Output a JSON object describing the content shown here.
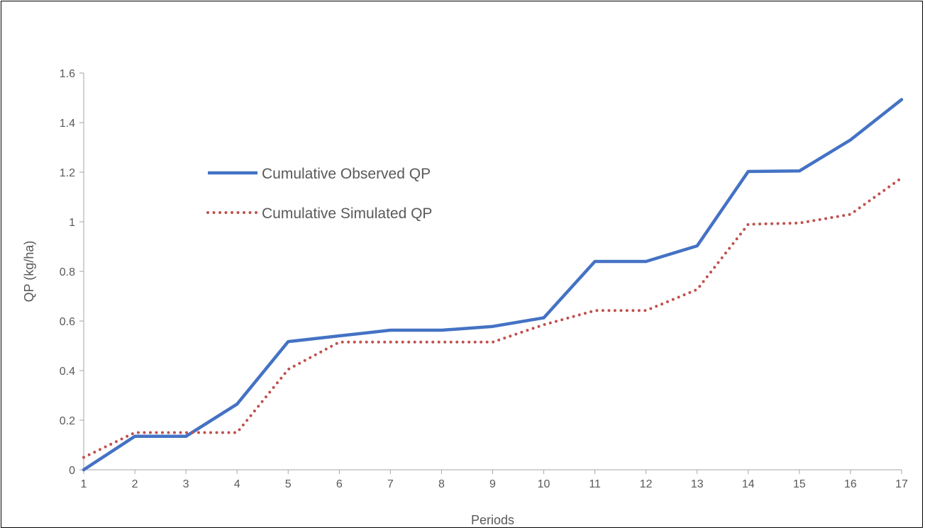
{
  "chart_data": {
    "type": "line",
    "title": "",
    "xlabel": "Periods",
    "ylabel": "QP (kg/ha)",
    "x": [
      1,
      2,
      3,
      4,
      5,
      6,
      7,
      8,
      9,
      10,
      11,
      12,
      13,
      14,
      15,
      16,
      17
    ],
    "x_tick_labels": [
      "1",
      "2",
      "3",
      "4",
      "5",
      "6",
      "7",
      "8",
      "9",
      "10",
      "11",
      "12",
      "13",
      "14",
      "15",
      "16",
      "17"
    ],
    "ylim": [
      0,
      1.6
    ],
    "y_ticks": [
      0,
      0.2,
      0.4,
      0.6,
      0.8,
      1,
      1.2,
      1.4,
      1.6
    ],
    "y_tick_labels": [
      "0",
      "0.2",
      "0.4",
      "0.6",
      "0.8",
      "1",
      "1.2",
      "1.4",
      "1.6"
    ],
    "grid": false,
    "legend_position": "left-upper inside plot",
    "series": [
      {
        "name": "Cumulative Observed QP",
        "color": "#4472C4",
        "style": "solid",
        "values": [
          0.0,
          0.135,
          0.135,
          0.265,
          0.517,
          0.54,
          0.563,
          0.563,
          0.578,
          0.613,
          0.84,
          0.84,
          0.903,
          1.203,
          1.205,
          1.33,
          1.493
        ]
      },
      {
        "name": "Cumulative Simulated QP",
        "color": "#C0504D",
        "style": "dotted",
        "values": [
          0.05,
          0.15,
          0.15,
          0.15,
          0.405,
          0.515,
          0.515,
          0.515,
          0.515,
          0.585,
          0.642,
          0.642,
          0.727,
          0.99,
          0.995,
          1.03,
          1.177
        ]
      }
    ]
  }
}
